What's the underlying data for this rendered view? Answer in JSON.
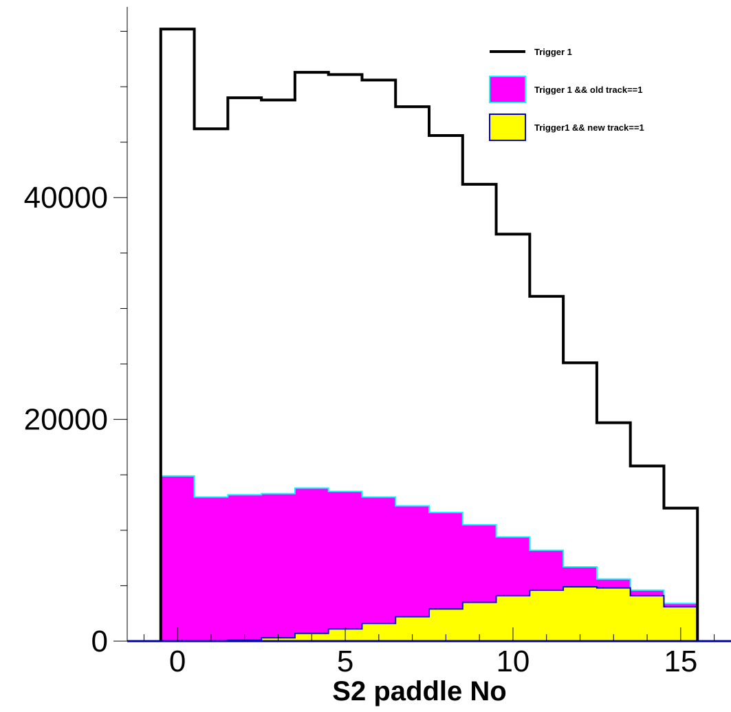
{
  "chart_data": {
    "type": "area",
    "xlabel": "S2 paddle No",
    "ylabel": "",
    "xlim": [
      -1.5,
      16.5
    ],
    "ylim": [
      0,
      57200
    ],
    "x_ticks": [
      0,
      5,
      10,
      15
    ],
    "x_minor_step": 1,
    "y_ticks": [
      0,
      20000,
      40000
    ],
    "y_minor_step": 5000,
    "bin_width": 1,
    "bin_centers": [
      0,
      1,
      2,
      3,
      4,
      5,
      6,
      7,
      8,
      9,
      10,
      11,
      12,
      13,
      14,
      15
    ],
    "grid": false,
    "legend_position": "top-right",
    "series": [
      {
        "name": "Trigger 1",
        "style": "line",
        "color": "#000000",
        "values": [
          55200,
          46200,
          49000,
          48800,
          51300,
          51100,
          50600,
          48200,
          45600,
          41200,
          36700,
          31100,
          25100,
          19700,
          15800,
          12000
        ]
      },
      {
        "name": "Trigger 1 && old track==1",
        "style": "fill",
        "color": "#ff00ff",
        "edge_color": "#00ffff",
        "values": [
          14900,
          13000,
          13200,
          13300,
          13800,
          13500,
          13000,
          12200,
          11600,
          10500,
          9400,
          8200,
          6700,
          5600,
          4600,
          3400
        ]
      },
      {
        "name": "Trigger1 && new track==1",
        "style": "fill",
        "color": "#ffff00",
        "edge_color": "#0000cc",
        "values": [
          0,
          0,
          100,
          300,
          700,
          1100,
          1600,
          2200,
          2900,
          3500,
          4100,
          4600,
          4900,
          4800,
          4100,
          3100
        ]
      }
    ]
  }
}
